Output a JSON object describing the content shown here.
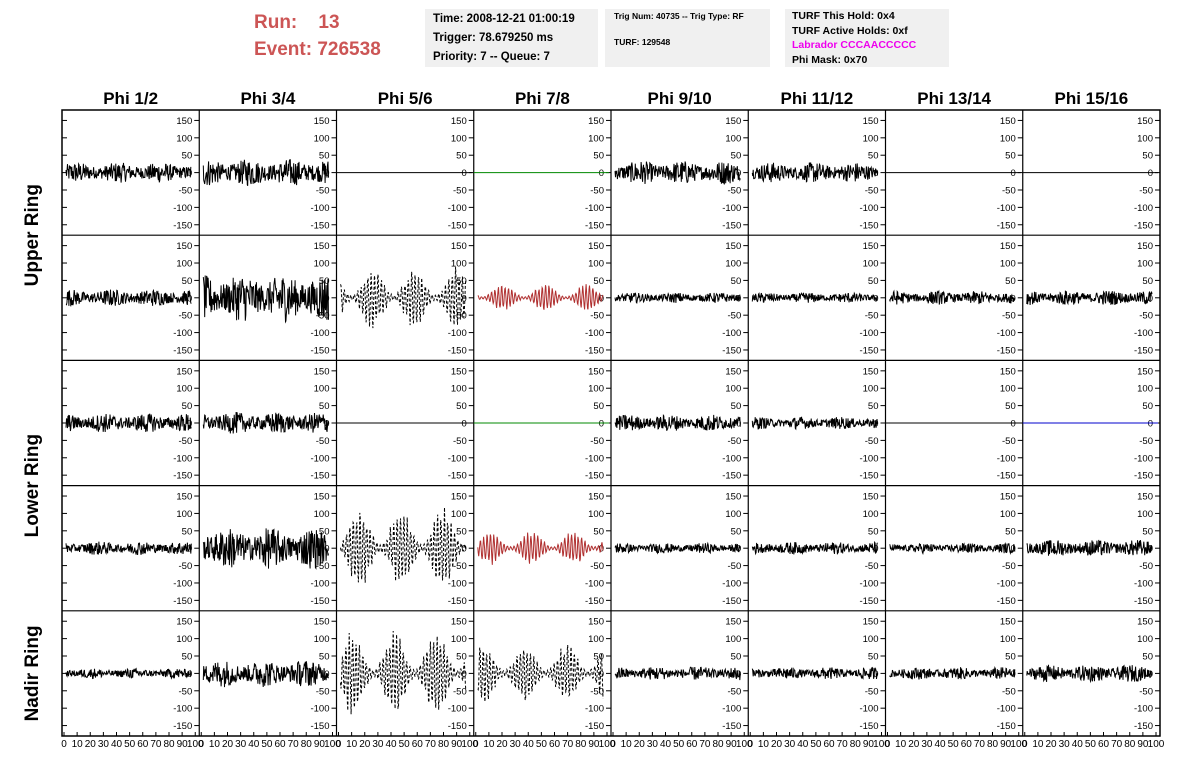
{
  "header": {
    "run_label": "Run:",
    "run_value": "13",
    "event_label": "Event:",
    "event_value": "726538",
    "time": "Time: 2008-12-21 01:00:19",
    "trigger": "Trigger: 78.679250 ms",
    "priority": "Priority: 7 -- Queue: 7",
    "trig_num": "Trig Num: 40735 -- Trig Type: RF",
    "turf": "TURF: 129548",
    "turf_hold": "TURF This Hold: 0x4",
    "turf_active": "TURF Active Holds: 0xf",
    "labrador": "Labrador CCCAACCCCC",
    "phi_mask": "Phi Mask: 0x70"
  },
  "colors": {
    "run_text": "#cc5555",
    "labrador": "#ee00ee",
    "trace_default": "#000000",
    "trace_red": "#b03030",
    "trace_green": "#008800",
    "trace_blue": "#0000cc",
    "box_bg": "#f0f0f0"
  },
  "chart_data": {
    "type": "line",
    "columns": [
      "Phi 1/2",
      "Phi 3/4",
      "Phi 5/6",
      "Phi 7/8",
      "Phi 9/10",
      "Phi 11/12",
      "Phi 13/14",
      "Phi 15/16"
    ],
    "row_groups": [
      "Upper Ring",
      "Lower Ring",
      "Nadir Ring"
    ],
    "ylim": [
      -180,
      180
    ],
    "yticks": [
      -150,
      -100,
      -50,
      0,
      50,
      100,
      150
    ],
    "xlim": [
      0,
      100
    ],
    "xticks": [
      "0",
      "10",
      "20",
      "30",
      "40",
      "50",
      "60",
      "70",
      "80",
      "90",
      "100"
    ],
    "grid": false,
    "panel_amplitudes": [
      [
        30,
        40,
        0,
        0,
        35,
        30,
        0,
        0
      ],
      [
        25,
        70,
        90,
        40,
        15,
        15,
        20,
        22
      ],
      [
        28,
        32,
        0,
        0,
        25,
        18,
        0,
        0
      ],
      [
        20,
        60,
        120,
        50,
        15,
        18,
        15,
        25
      ],
      [
        15,
        40,
        130,
        90,
        20,
        18,
        18,
        25
      ]
    ],
    "panel_styles": [
      [
        "solid",
        "solid",
        "flat",
        "flat-green",
        "solid",
        "solid",
        "flat",
        "flat"
      ],
      [
        "solid",
        "solid",
        "dashed",
        "red",
        "solid",
        "solid",
        "solid",
        "solid"
      ],
      [
        "solid",
        "solid",
        "flat",
        "flat-green",
        "solid",
        "solid",
        "flat",
        "flat-blue"
      ],
      [
        "solid",
        "solid",
        "dashed",
        "red",
        "solid",
        "solid",
        "solid",
        "solid"
      ],
      [
        "solid",
        "solid",
        "dashed",
        "dashed",
        "solid",
        "solid",
        "solid",
        "solid"
      ]
    ],
    "x_samples": 260
  }
}
